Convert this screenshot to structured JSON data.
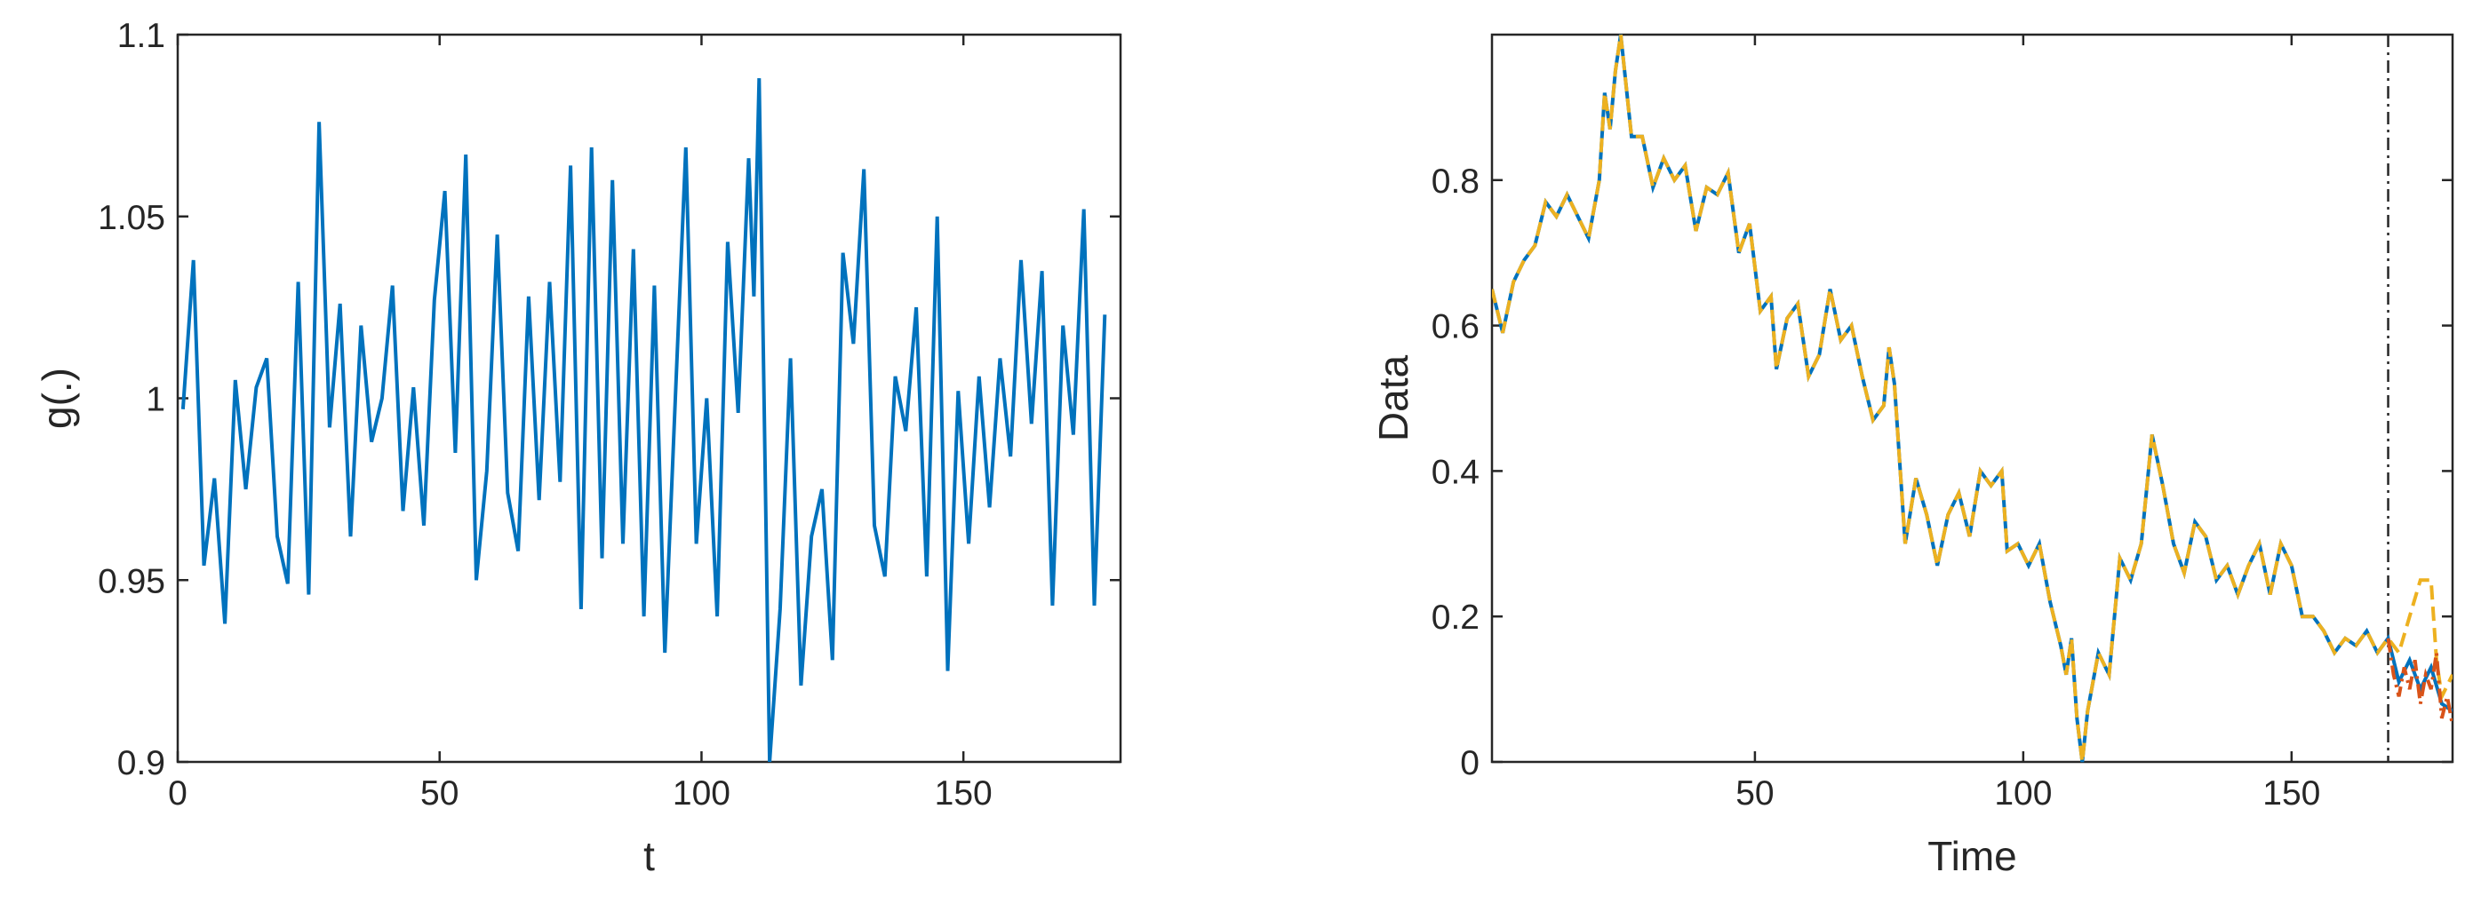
{
  "chart_data": [
    {
      "type": "line",
      "xlabel": "t",
      "ylabel": "g(.)",
      "xlim": [
        0,
        180
      ],
      "ylim": [
        0.9,
        1.1
      ],
      "xticks": [
        0,
        50,
        100,
        150
      ],
      "yticks": [
        0.9,
        0.95,
        1,
        1.05,
        1.1
      ],
      "x": [
        1,
        3,
        5,
        7,
        9,
        11,
        13,
        15,
        17,
        19,
        21,
        23,
        25,
        27,
        29,
        31,
        33,
        35,
        37,
        39,
        41,
        43,
        45,
        47,
        49,
        51,
        53,
        55,
        57,
        59,
        61,
        63,
        65,
        67,
        69,
        71,
        73,
        75,
        77,
        79,
        81,
        83,
        85,
        87,
        89,
        91,
        93,
        95,
        97,
        99,
        101,
        103,
        105,
        107,
        109,
        110,
        111,
        113,
        115,
        117,
        119,
        121,
        123,
        125,
        127,
        129,
        131,
        133,
        135,
        137,
        139,
        141,
        143,
        145,
        147,
        149,
        151,
        153,
        155,
        157,
        159,
        161,
        163,
        165,
        167,
        169,
        171,
        173,
        175,
        177
      ],
      "series": [
        {
          "color": "#0072BD",
          "style": "solid",
          "values": [
            0.997,
            1.038,
            0.954,
            0.978,
            0.938,
            1.005,
            0.975,
            1.003,
            1.011,
            0.962,
            0.949,
            1.032,
            0.946,
            1.076,
            0.992,
            1.026,
            0.962,
            1.02,
            0.988,
            1.0,
            1.031,
            0.969,
            1.003,
            0.965,
            1.027,
            1.057,
            0.985,
            1.067,
            0.95,
            0.98,
            1.045,
            0.974,
            0.958,
            1.028,
            0.972,
            1.032,
            0.977,
            1.064,
            0.942,
            1.069,
            0.956,
            1.06,
            0.96,
            1.041,
            0.94,
            1.031,
            0.93,
            1.0,
            1.069,
            0.96,
            1.0,
            0.94,
            1.043,
            0.996,
            1.066,
            1.028,
            1.088,
            0.9,
            0.942,
            1.011,
            0.921,
            0.962,
            0.975,
            0.928,
            1.04,
            1.015,
            1.063,
            0.965,
            0.951,
            1.006,
            0.991,
            1.025,
            0.951,
            1.05,
            0.925,
            1.002,
            0.96,
            1.006,
            0.97,
            1.011,
            0.984,
            1.038,
            0.993,
            1.035,
            0.943,
            1.02,
            0.99,
            1.052,
            0.943,
            1.023
          ]
        }
      ]
    },
    {
      "type": "line",
      "xlabel": "Time",
      "ylabel": "Data",
      "xlim": [
        1,
        180
      ],
      "ylim": [
        0,
        1
      ],
      "xticks": [
        50,
        100,
        150
      ],
      "yticks": [
        0,
        0.2,
        0.4,
        0.6,
        0.8
      ],
      "vline": 168,
      "series": [
        {
          "color": "#0072BD",
          "style": "solid",
          "x": [
            1,
            3,
            5,
            7,
            9,
            11,
            13,
            15,
            17,
            19,
            21,
            22,
            23,
            24,
            25,
            27,
            29,
            31,
            33,
            35,
            37,
            39,
            41,
            43,
            45,
            47,
            49,
            51,
            53,
            54,
            56,
            58,
            60,
            62,
            64,
            66,
            68,
            70,
            72,
            74,
            75,
            76,
            78,
            80,
            82,
            84,
            86,
            88,
            90,
            92,
            94,
            96,
            97,
            99,
            101,
            103,
            105,
            107,
            108,
            109,
            110,
            111,
            112,
            114,
            116,
            118,
            120,
            122,
            124,
            126,
            128,
            130,
            132,
            134,
            136,
            138,
            140,
            142,
            144,
            146,
            148,
            150,
            152,
            154,
            156,
            158,
            160,
            162,
            164,
            166,
            168,
            170,
            172,
            174,
            176,
            178,
            180
          ],
          "values": [
            0.65,
            0.59,
            0.66,
            0.69,
            0.71,
            0.77,
            0.75,
            0.78,
            0.75,
            0.72,
            0.8,
            0.92,
            0.87,
            0.95,
            1.0,
            0.86,
            0.86,
            0.79,
            0.83,
            0.8,
            0.82,
            0.73,
            0.79,
            0.78,
            0.81,
            0.7,
            0.74,
            0.62,
            0.64,
            0.54,
            0.61,
            0.63,
            0.53,
            0.56,
            0.65,
            0.58,
            0.6,
            0.53,
            0.47,
            0.49,
            0.57,
            0.52,
            0.3,
            0.39,
            0.34,
            0.27,
            0.34,
            0.37,
            0.31,
            0.4,
            0.38,
            0.4,
            0.29,
            0.3,
            0.27,
            0.3,
            0.22,
            0.16,
            0.12,
            0.17,
            0.06,
            0.0,
            0.07,
            0.15,
            0.12,
            0.28,
            0.25,
            0.3,
            0.45,
            0.38,
            0.3,
            0.26,
            0.33,
            0.31,
            0.25,
            0.27,
            0.23,
            0.27,
            0.3,
            0.23,
            0.3,
            0.27,
            0.2,
            0.2,
            0.18,
            0.15,
            0.17,
            0.16,
            0.18,
            0.15,
            0.17,
            0.11,
            0.14,
            0.1,
            0.13,
            0.08,
            0.07
          ]
        },
        {
          "color": "#EDB120",
          "style": "dashed",
          "x": [
            1,
            3,
            5,
            7,
            9,
            11,
            13,
            15,
            17,
            19,
            21,
            22,
            23,
            24,
            25,
            27,
            29,
            31,
            33,
            35,
            37,
            39,
            41,
            43,
            45,
            47,
            49,
            51,
            53,
            54,
            56,
            58,
            60,
            62,
            64,
            66,
            68,
            70,
            72,
            74,
            75,
            76,
            78,
            80,
            82,
            84,
            86,
            88,
            90,
            92,
            94,
            96,
            97,
            99,
            101,
            103,
            105,
            107,
            108,
            109,
            110,
            111,
            112,
            114,
            116,
            118,
            120,
            122,
            124,
            126,
            128,
            130,
            132,
            134,
            136,
            138,
            140,
            142,
            144,
            146,
            148,
            150,
            152,
            154,
            156,
            158,
            160,
            162,
            164,
            166,
            168,
            170,
            172,
            174,
            176,
            177,
            178,
            180
          ],
          "values": [
            0.65,
            0.59,
            0.66,
            0.69,
            0.71,
            0.77,
            0.75,
            0.78,
            0.75,
            0.72,
            0.8,
            0.92,
            0.87,
            0.95,
            1.0,
            0.86,
            0.86,
            0.79,
            0.83,
            0.8,
            0.82,
            0.73,
            0.79,
            0.78,
            0.81,
            0.7,
            0.74,
            0.62,
            0.64,
            0.54,
            0.61,
            0.63,
            0.53,
            0.56,
            0.65,
            0.58,
            0.6,
            0.53,
            0.47,
            0.49,
            0.57,
            0.52,
            0.3,
            0.39,
            0.34,
            0.27,
            0.34,
            0.37,
            0.31,
            0.4,
            0.38,
            0.4,
            0.29,
            0.3,
            0.27,
            0.3,
            0.22,
            0.16,
            0.12,
            0.17,
            0.06,
            0.0,
            0.07,
            0.15,
            0.12,
            0.28,
            0.25,
            0.3,
            0.45,
            0.38,
            0.3,
            0.26,
            0.33,
            0.31,
            0.25,
            0.27,
            0.23,
            0.27,
            0.3,
            0.23,
            0.3,
            0.27,
            0.2,
            0.2,
            0.18,
            0.15,
            0.17,
            0.16,
            0.18,
            0.15,
            0.17,
            0.15,
            0.2,
            0.25,
            0.25,
            0.14,
            0.09,
            0.12
          ]
        },
        {
          "color": "#D95319",
          "style": "dashdot",
          "x": [
            168,
            169,
            170,
            171,
            172,
            173,
            174,
            175,
            176,
            177,
            178,
            179,
            180
          ],
          "values": [
            0.17,
            0.12,
            0.09,
            0.13,
            0.1,
            0.14,
            0.08,
            0.12,
            0.1,
            0.15,
            0.06,
            0.09,
            0.05
          ]
        }
      ]
    }
  ]
}
